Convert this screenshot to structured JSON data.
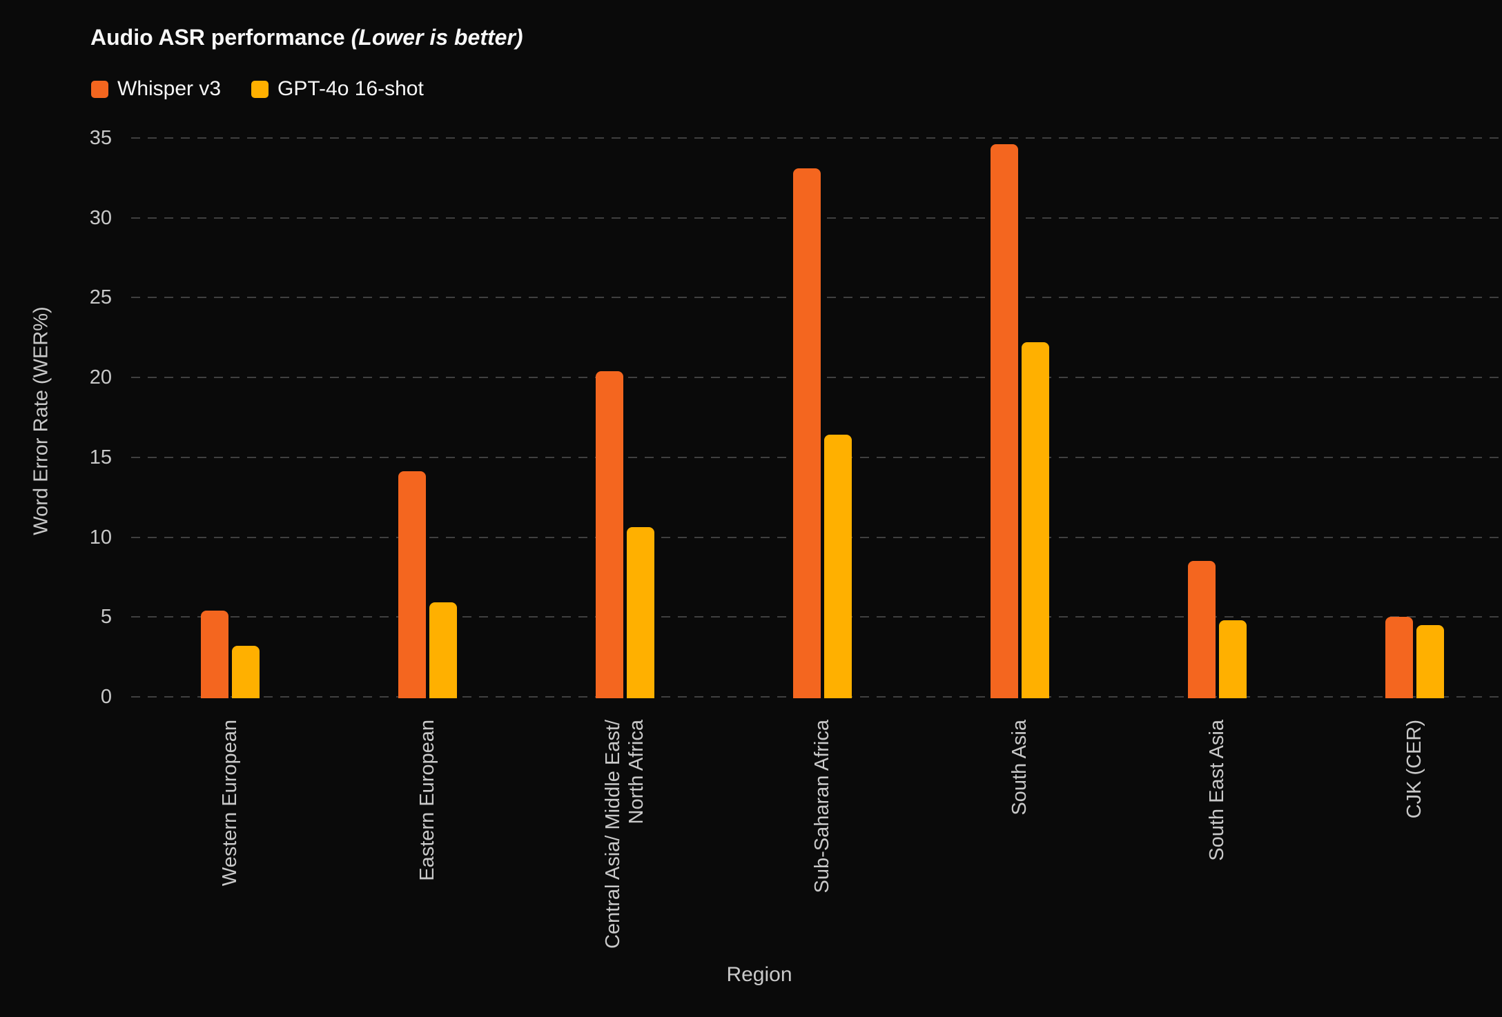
{
  "header": {
    "title": "Audio ASR performance",
    "note": "(Lower is better)"
  },
  "chart_data": {
    "type": "bar",
    "title": "Audio ASR performance (Lower is better)",
    "xlabel": "Region",
    "ylabel": "Word Error Rate (WER%)",
    "ylim": [
      0,
      35
    ],
    "yticks": [
      0,
      5,
      10,
      15,
      20,
      25,
      30,
      35
    ],
    "grid": "horizontal-dashed",
    "legend_position": "top-left",
    "categories": [
      "Western European",
      "Eastern European",
      "Central Asia/ Middle East/\nNorth Africa",
      "Sub-Saharan Africa",
      "South Asia",
      "South East Asia",
      "CJK (CER)"
    ],
    "series": [
      {
        "name": "Whisper v3",
        "color": "#F4661F",
        "values": [
          5.5,
          14.2,
          20.5,
          33.2,
          34.7,
          8.6,
          5.1
        ]
      },
      {
        "name": "GPT-4o 16-shot",
        "color": "#FFB000",
        "values": [
          3.3,
          6.0,
          10.7,
          16.5,
          22.3,
          4.9,
          4.6
        ]
      }
    ]
  },
  "colors": {
    "background": "#0a0a0a",
    "gridline": "#404040",
    "tick_text": "#c9c9c9",
    "title_text": "#f7f7f7"
  }
}
